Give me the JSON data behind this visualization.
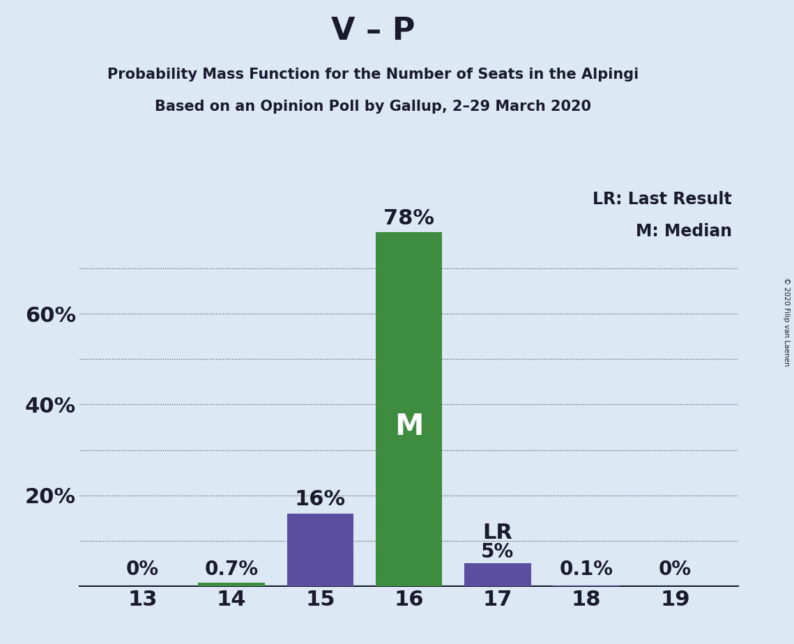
{
  "title_main": "V – P",
  "subtitle1": "Probability Mass Function for the Number of Seats in the Alpingi",
  "subtitle2": "Based on an Opinion Poll by Gallup, 2–29 March 2020",
  "copyright": "© 2020 Filip van Laenen",
  "categories": [
    13,
    14,
    15,
    16,
    17,
    18,
    19
  ],
  "values": [
    0.0,
    0.7,
    16.0,
    78.0,
    5.0,
    0.1,
    0.0
  ],
  "bar_colors": [
    "#5b4ea0",
    "#3d8c40",
    "#5b4ea0",
    "#3d8c40",
    "#5b4ea0",
    "#5b4ea0",
    "#5b4ea0"
  ],
  "median_seat": 16,
  "last_result_seat": 17,
  "background_color": "#dce9f5",
  "median_label": "M",
  "lr_label": "LR",
  "legend_lr": "LR: Last Result",
  "legend_m": "M: Median",
  "ylim": [
    0,
    88
  ],
  "grid_dotted_lines": [
    10,
    20,
    30,
    40,
    50,
    60,
    70
  ],
  "ytick_major": [
    20,
    40,
    60
  ],
  "ytick_major_labels": [
    "20%",
    "40%",
    "60%"
  ],
  "grid_color": "#555555",
  "value_labels": [
    "0%",
    "0.7%",
    "16%",
    "78%",
    "5%",
    "0.1%",
    "0%"
  ]
}
